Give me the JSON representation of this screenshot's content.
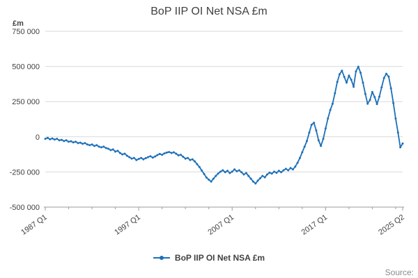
{
  "title": "BoP IIP OI Net NSA £m",
  "source_label": "Source:",
  "legend": {
    "label": "BoP IIP OI Net NSA £m"
  },
  "y_axis": {
    "unit_label": "£m",
    "min": -500000,
    "max": 750000,
    "tick_values": [
      750000,
      500000,
      250000,
      0,
      -250000,
      -500000
    ],
    "tick_labels": [
      "750 000",
      "500 000",
      "250 000",
      "0",
      "-250 000",
      "-500 000"
    ]
  },
  "x_axis": {
    "tick_indices": [
      0,
      40,
      80,
      120,
      153
    ],
    "tick_labels": [
      "1987 Q1",
      "1997 Q1",
      "2007 Q1",
      "2017 Q1",
      "2025 Q2"
    ],
    "minor_tick_step": 10
  },
  "colors": {
    "line": "#1d70b8",
    "grid": "#d9d9d9",
    "axis": "#9b9b9b",
    "tick_text": "#414042"
  },
  "chart_data": {
    "type": "line",
    "title": "BoP IIP OI Net NSA £m",
    "series_name": "BoP IIP OI Net NSA £m",
    "frequency": "quarterly",
    "x_start": "1987 Q1",
    "x_end": "2025 Q2",
    "ylabel": "£m",
    "ylim": [
      -500000,
      750000
    ],
    "values": [
      -15000,
      -8000,
      -18000,
      -12000,
      -20000,
      -15000,
      -25000,
      -22000,
      -30000,
      -25000,
      -35000,
      -32000,
      -40000,
      -35000,
      -45000,
      -42000,
      -50000,
      -45000,
      -55000,
      -60000,
      -55000,
      -65000,
      -60000,
      -70000,
      -75000,
      -70000,
      -80000,
      -85000,
      -95000,
      -90000,
      -105000,
      -100000,
      -115000,
      -125000,
      -120000,
      -135000,
      -145000,
      -155000,
      -150000,
      -165000,
      -158000,
      -150000,
      -160000,
      -152000,
      -145000,
      -138000,
      -148000,
      -140000,
      -130000,
      -122000,
      -128000,
      -118000,
      -112000,
      -108000,
      -115000,
      -110000,
      -120000,
      -132000,
      -128000,
      -142000,
      -155000,
      -150000,
      -165000,
      -160000,
      -175000,
      -195000,
      -215000,
      -240000,
      -265000,
      -290000,
      -305000,
      -318000,
      -298000,
      -278000,
      -262000,
      -248000,
      -238000,
      -252000,
      -242000,
      -258000,
      -248000,
      -232000,
      -245000,
      -238000,
      -252000,
      -268000,
      -258000,
      -278000,
      -298000,
      -318000,
      -332000,
      -312000,
      -295000,
      -278000,
      -288000,
      -268000,
      -255000,
      -262000,
      -248000,
      -256000,
      -242000,
      -252000,
      -238000,
      -228000,
      -238000,
      -222000,
      -232000,
      -212000,
      -185000,
      -150000,
      -110000,
      -70000,
      -30000,
      30000,
      85000,
      100000,
      45000,
      -25000,
      -65000,
      -15000,
      60000,
      130000,
      190000,
      235000,
      310000,
      390000,
      445000,
      470000,
      425000,
      385000,
      435000,
      405000,
      355000,
      465000,
      498000,
      455000,
      385000,
      305000,
      235000,
      262000,
      318000,
      282000,
      232000,
      285000,
      352000,
      418000,
      448000,
      428000,
      345000,
      240000,
      130000,
      30000,
      -75000,
      -48000
    ]
  }
}
